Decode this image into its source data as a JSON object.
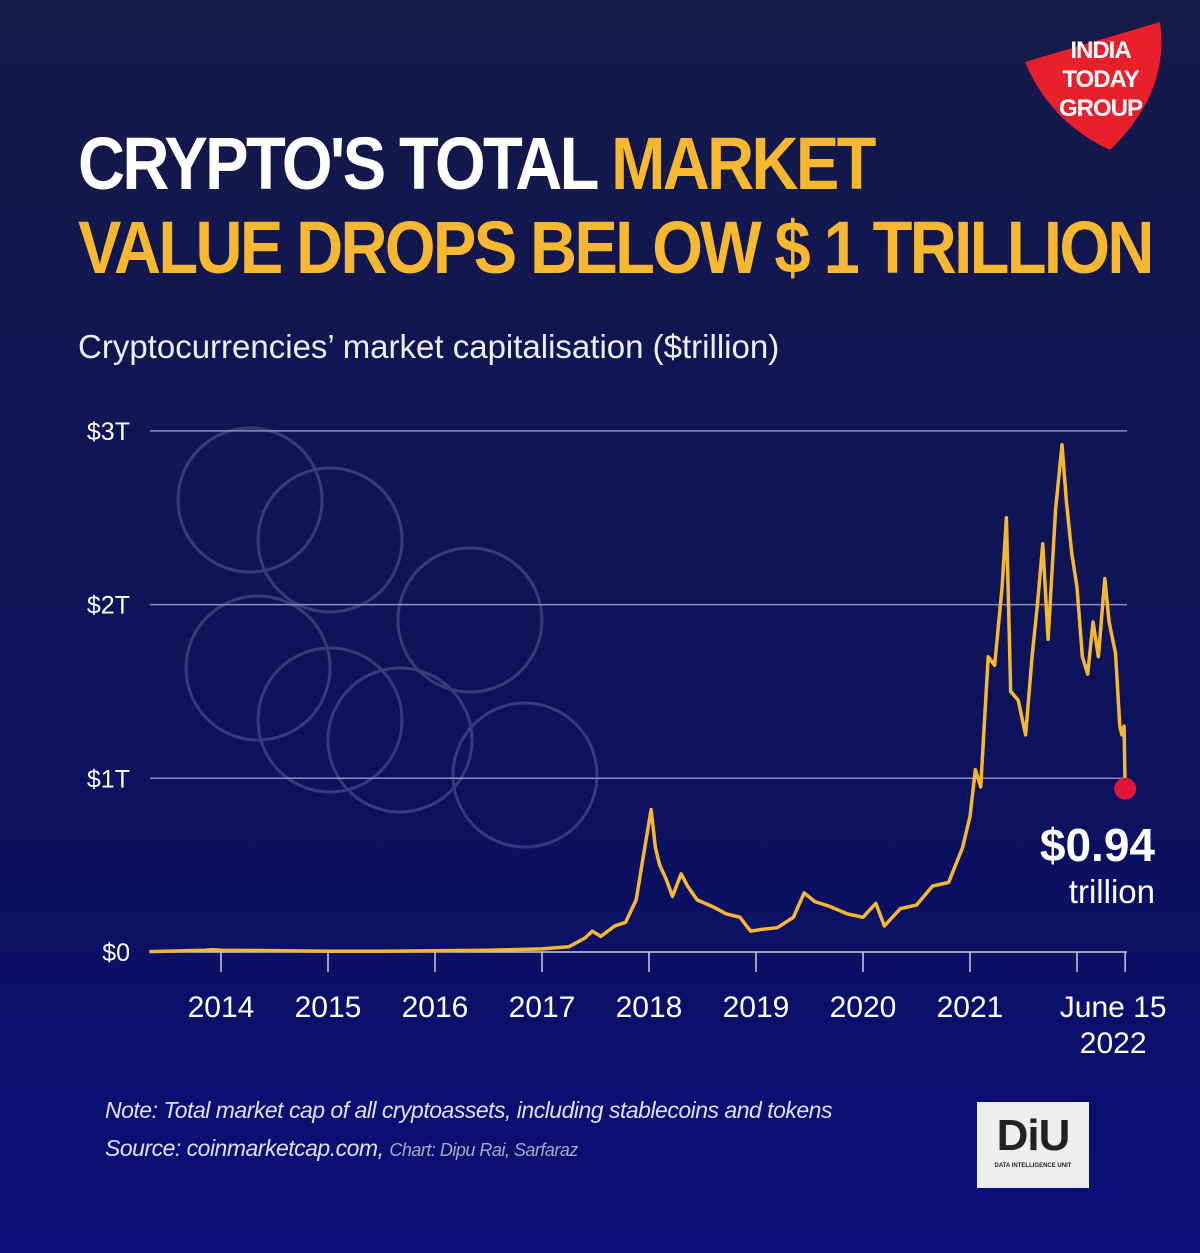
{
  "brand": {
    "logo_text": "INDIA TODAY GROUP",
    "logo_color": "#e8202c",
    "diu_logo_text": "DiU",
    "diu_subtitle": "DATA INTELLIGENCE UNIT"
  },
  "title": {
    "part1": "CRYPTO'S TOTAL ",
    "part2": "MARKET",
    "line2": "VALUE DROPS BELOW $ 1 TRILLION"
  },
  "note": "Note: Total market cap of all cryptoassets, including stablecoins and tokens",
  "source": "Source: coinmarketcap.com,",
  "credit": "Chart: Dipu Rai, Sarfaraz",
  "annotation": {
    "value": "$0.94",
    "unit": "trillion"
  },
  "chart_data": {
    "type": "line",
    "title": "Cryptocurrencies’ market capitalisation ($trillion)",
    "ylim": [
      0,
      3
    ],
    "xlim": [
      2013.33,
      2022.45
    ],
    "y_ticks": [
      {
        "v": 0,
        "label": "$0"
      },
      {
        "v": 1,
        "label": "$1T"
      },
      {
        "v": 2,
        "label": "$2T"
      },
      {
        "v": 3,
        "label": "$3T"
      }
    ],
    "x_ticks": [
      {
        "v": 2014,
        "label": "2014"
      },
      {
        "v": 2015,
        "label": "2015"
      },
      {
        "v": 2016,
        "label": "2016"
      },
      {
        "v": 2017,
        "label": "2017"
      },
      {
        "v": 2018,
        "label": "2018"
      },
      {
        "v": 2019,
        "label": "2019"
      },
      {
        "v": 2020,
        "label": "2020"
      },
      {
        "v": 2021,
        "label": "2021"
      },
      {
        "v": 2022,
        "label": ""
      },
      {
        "v": 2022.45,
        "label": "June 15",
        "label2": "2022"
      }
    ],
    "line_color": "#f6b731",
    "marker_color": "#e0143c",
    "series": [
      {
        "name": "Total market cap",
        "points": [
          [
            2013.33,
            0.002
          ],
          [
            2013.85,
            0.01
          ],
          [
            2013.92,
            0.014
          ],
          [
            2014,
            0.01
          ],
          [
            2014.5,
            0.008
          ],
          [
            2015,
            0.004
          ],
          [
            2015.5,
            0.004
          ],
          [
            2016,
            0.007
          ],
          [
            2016.5,
            0.01
          ],
          [
            2017,
            0.018
          ],
          [
            2017.25,
            0.03
          ],
          [
            2017.4,
            0.08
          ],
          [
            2017.47,
            0.12
          ],
          [
            2017.55,
            0.09
          ],
          [
            2017.68,
            0.15
          ],
          [
            2017.78,
            0.17
          ],
          [
            2017.88,
            0.3
          ],
          [
            2017.96,
            0.6
          ],
          [
            2018.02,
            0.82
          ],
          [
            2018.06,
            0.6
          ],
          [
            2018.1,
            0.5
          ],
          [
            2018.16,
            0.42
          ],
          [
            2018.22,
            0.32
          ],
          [
            2018.3,
            0.45
          ],
          [
            2018.36,
            0.38
          ],
          [
            2018.45,
            0.3
          ],
          [
            2018.6,
            0.26
          ],
          [
            2018.72,
            0.22
          ],
          [
            2018.85,
            0.2
          ],
          [
            2018.95,
            0.12
          ],
          [
            2019.05,
            0.13
          ],
          [
            2019.2,
            0.14
          ],
          [
            2019.35,
            0.2
          ],
          [
            2019.45,
            0.34
          ],
          [
            2019.55,
            0.29
          ],
          [
            2019.7,
            0.26
          ],
          [
            2019.85,
            0.22
          ],
          [
            2020,
            0.2
          ],
          [
            2020.12,
            0.28
          ],
          [
            2020.2,
            0.15
          ],
          [
            2020.35,
            0.25
          ],
          [
            2020.5,
            0.27
          ],
          [
            2020.65,
            0.38
          ],
          [
            2020.8,
            0.4
          ],
          [
            2020.93,
            0.6
          ],
          [
            2021,
            0.78
          ],
          [
            2021.05,
            1.05
          ],
          [
            2021.1,
            0.95
          ],
          [
            2021.17,
            1.7
          ],
          [
            2021.23,
            1.65
          ],
          [
            2021.3,
            2.1
          ],
          [
            2021.34,
            2.5
          ],
          [
            2021.38,
            1.5
          ],
          [
            2021.45,
            1.45
          ],
          [
            2021.52,
            1.25
          ],
          [
            2021.58,
            1.7
          ],
          [
            2021.63,
            2.0
          ],
          [
            2021.68,
            2.35
          ],
          [
            2021.73,
            1.8
          ],
          [
            2021.8,
            2.55
          ],
          [
            2021.86,
            2.92
          ],
          [
            2021.9,
            2.6
          ],
          [
            2021.95,
            2.3
          ],
          [
            2022,
            2.1
          ],
          [
            2022.05,
            1.7
          ],
          [
            2022.1,
            1.6
          ],
          [
            2022.15,
            1.9
          ],
          [
            2022.2,
            1.7
          ],
          [
            2022.26,
            2.15
          ],
          [
            2022.3,
            1.9
          ],
          [
            2022.36,
            1.72
          ],
          [
            2022.4,
            1.3
          ],
          [
            2022.42,
            1.25
          ],
          [
            2022.44,
            1.3
          ],
          [
            2022.45,
            0.94
          ]
        ]
      }
    ]
  }
}
